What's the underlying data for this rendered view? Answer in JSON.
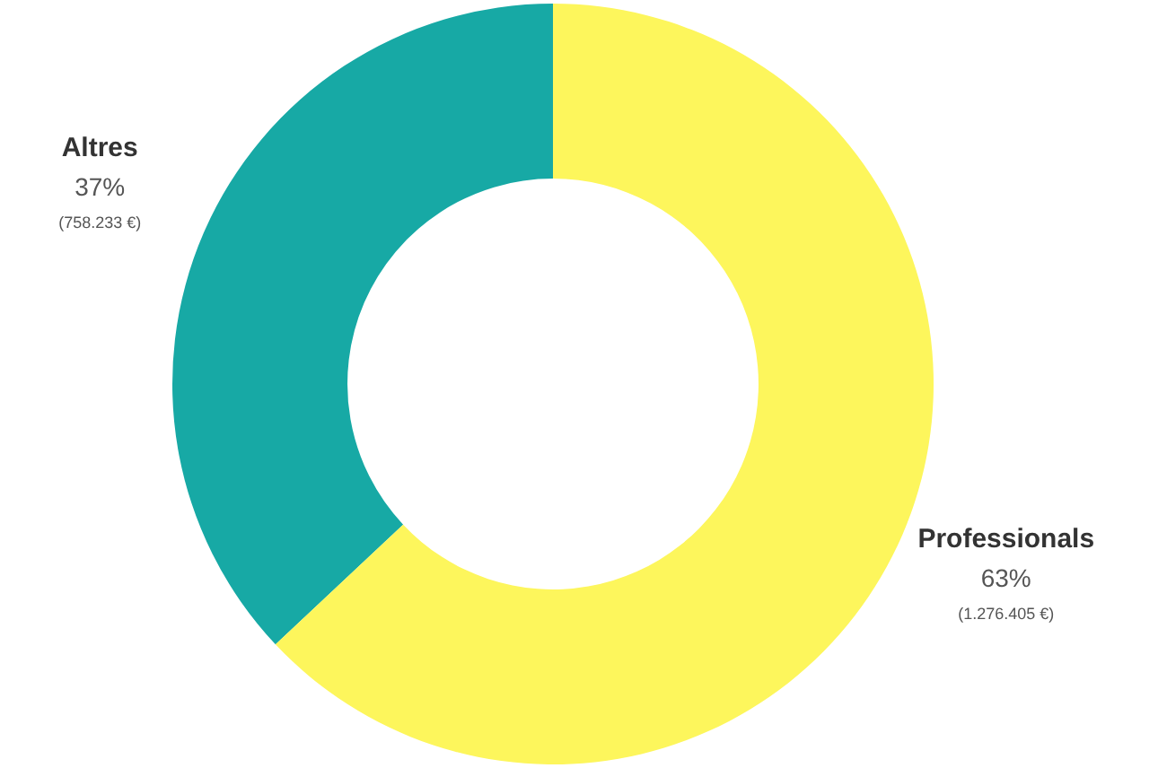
{
  "chart_data": {
    "type": "donut",
    "categories": [
      "Altres",
      "Professionals"
    ],
    "values": [
      37,
      63
    ],
    "colors": [
      "#17a9a5",
      "#fdf65c"
    ],
    "value_labels": [
      "37%",
      "63%"
    ],
    "annotations": [
      "(758.233 €)",
      "(1.276.405 €)"
    ]
  }
}
